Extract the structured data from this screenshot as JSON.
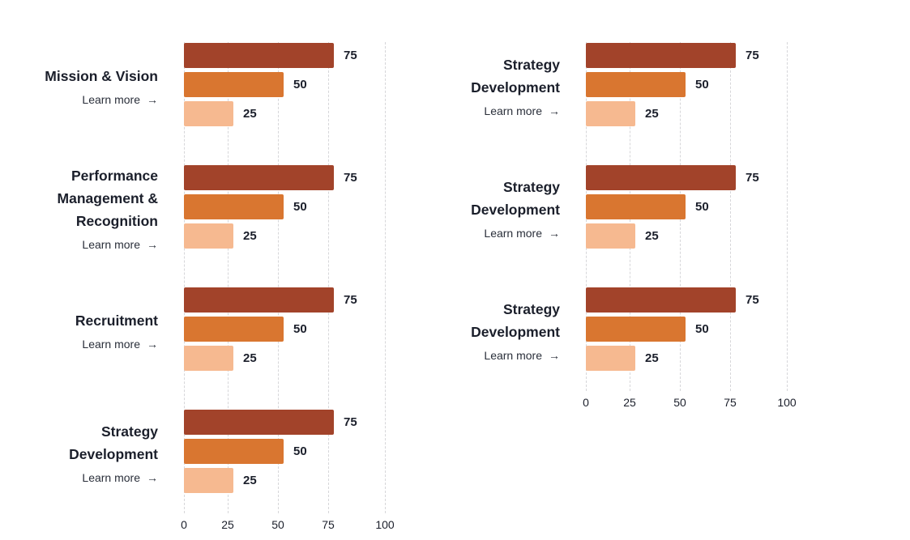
{
  "colors": {
    "series_75": "#a2432a",
    "series_50": "#d97630",
    "series_25": "#f6b990"
  },
  "chart_data": [
    {
      "type": "bar",
      "orientation": "horizontal",
      "panel": "left",
      "xlim": [
        0,
        100
      ],
      "x_ticks": [
        0,
        25,
        50,
        75,
        100
      ],
      "grid": true,
      "categories": [
        {
          "title_lines": [
            "Mission & Vision"
          ],
          "link": "Learn more",
          "values": [
            75,
            50,
            25
          ]
        },
        {
          "title_lines": [
            "Performance",
            "Management &",
            "Recognition"
          ],
          "link": "Learn more",
          "values": [
            75,
            50,
            25
          ]
        },
        {
          "title_lines": [
            "Recruitment"
          ],
          "link": "Learn more",
          "values": [
            75,
            50,
            25
          ]
        },
        {
          "title_lines": [
            "Strategy",
            "Development"
          ],
          "link": "Learn more",
          "values": [
            75,
            50,
            25
          ]
        }
      ]
    },
    {
      "type": "bar",
      "orientation": "horizontal",
      "panel": "right",
      "xlim": [
        0,
        100
      ],
      "x_ticks": [
        0,
        25,
        50,
        75,
        100
      ],
      "grid": true,
      "categories": [
        {
          "title_lines": [
            "Strategy",
            "Development"
          ],
          "link": "Learn more",
          "values": [
            75,
            50,
            25
          ]
        },
        {
          "title_lines": [
            "Strategy",
            "Development"
          ],
          "link": "Learn more",
          "values": [
            75,
            50,
            25
          ]
        },
        {
          "title_lines": [
            "Strategy",
            "Development"
          ],
          "link": "Learn more",
          "values": [
            75,
            50,
            25
          ]
        }
      ]
    }
  ],
  "link_arrow": "→"
}
